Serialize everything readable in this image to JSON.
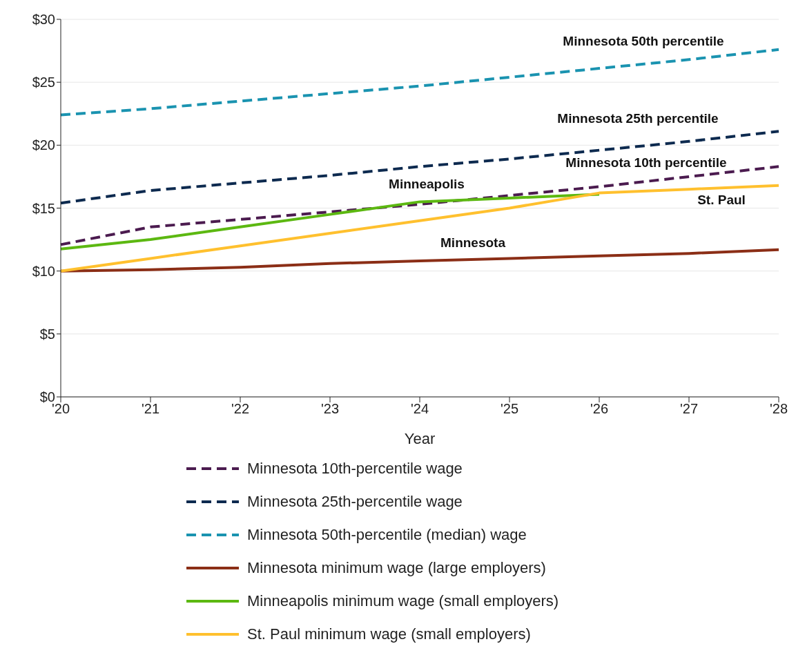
{
  "chart_data": {
    "type": "line",
    "xlabel": "Year",
    "categories": [
      "'20",
      "'21",
      "'22",
      "'23",
      "'24",
      "'25",
      "'26",
      "'27",
      "'28"
    ],
    "ylim": [
      0,
      30
    ],
    "yticks": [
      {
        "value": 0,
        "label": "$0"
      },
      {
        "value": 5,
        "label": "$5"
      },
      {
        "value": 10,
        "label": "$10"
      },
      {
        "value": 15,
        "label": "$15"
      },
      {
        "value": 20,
        "label": "$20"
      },
      {
        "value": 25,
        "label": "$25"
      },
      {
        "value": 30,
        "label": "$30"
      }
    ],
    "grid": "y",
    "legend": "bottom",
    "marker": "none",
    "series": [
      {
        "name": "Minnesota 10th-percentile wage",
        "color": "#4b1b4f",
        "line_style": "dashed",
        "values": [
          12.1,
          13.5,
          14.1,
          14.7,
          15.3,
          16.0,
          16.7,
          17.5,
          18.3
        ]
      },
      {
        "name": "Minnesota 25th-percentile wage",
        "color": "#0d2a4f",
        "line_style": "dashed",
        "values": [
          15.4,
          16.4,
          17.0,
          17.6,
          18.3,
          18.9,
          19.6,
          20.3,
          21.1
        ]
      },
      {
        "name": "Minnesota 50th-percentile (median) wage",
        "color": "#1a93b0",
        "line_style": "dashed",
        "values": [
          22.4,
          22.9,
          23.5,
          24.1,
          24.7,
          25.4,
          26.1,
          26.8,
          27.6
        ]
      },
      {
        "name": "Minnesota minimum wage (large employers)",
        "color": "#8b2e16",
        "line_style": "solid",
        "values": [
          10.0,
          10.1,
          10.3,
          10.6,
          10.8,
          11.0,
          11.2,
          11.4,
          11.7
        ]
      },
      {
        "name": "Minneapolis minimum wage (small employers)",
        "color": "#5cb811",
        "line_style": "solid",
        "values": [
          11.75,
          12.5,
          13.5,
          14.5,
          15.5,
          15.8,
          16.1,
          null,
          null
        ]
      },
      {
        "name": "St. Paul minimum wage (small employers)",
        "color": "#ffc02e",
        "line_style": "solid",
        "values": [
          10.0,
          11.0,
          12.0,
          13.0,
          14.0,
          15.0,
          16.2,
          16.5,
          16.8
        ]
      }
    ],
    "annotations": [
      "Minnesota 50th percentile",
      "Minnesota 25th percentile",
      "Minnesota 10th percentile",
      "Minneapolis",
      "Minnesota",
      "St. Paul"
    ]
  }
}
